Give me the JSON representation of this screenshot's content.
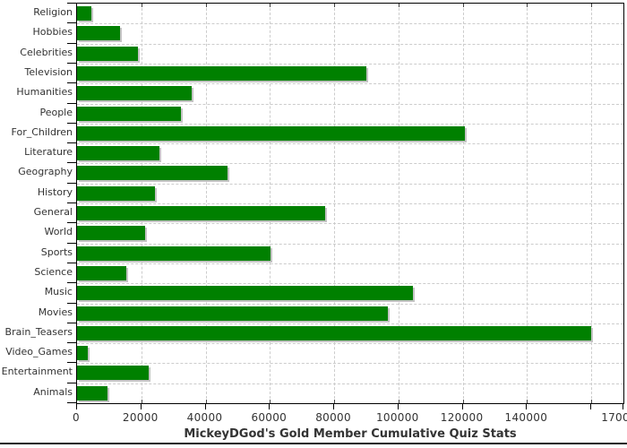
{
  "chart_data": {
    "type": "bar",
    "orientation": "horizontal",
    "title": "MickeyDGod's Gold Member Cumulative Quiz Stats",
    "categories": [
      "Religion",
      "Hobbies",
      "Celebrities",
      "Television",
      "Humanities",
      "People",
      "For_Children",
      "Literature",
      "Geography",
      "History",
      "General",
      "World",
      "Sports",
      "Science",
      "Music",
      "Movies",
      "Brain_Teasers",
      "Video_Games",
      "Entertainment",
      "Animals"
    ],
    "values": [
      4400,
      13300,
      18900,
      90000,
      35600,
      32200,
      120800,
      25600,
      46700,
      24200,
      77200,
      21100,
      60300,
      15300,
      104400,
      96700,
      159900,
      3300,
      22200,
      9400
    ],
    "xlim": [
      0,
      170000
    ],
    "x_ticks": [
      0,
      20000,
      40000,
      60000,
      80000,
      100000,
      120000,
      140000,
      160000,
      170000
    ],
    "x_tick_labels": [
      "0",
      "20000",
      "40000",
      "60000",
      "80000",
      "100000",
      "120000",
      "140000",
      "",
      "170000"
    ],
    "grid": true,
    "legend": "none",
    "bar_color": "#008000",
    "bar_shadow_color": "#c4c4c4",
    "grid_color": "#cccccc",
    "axis_color": "#000000",
    "text_color": "#333333"
  }
}
